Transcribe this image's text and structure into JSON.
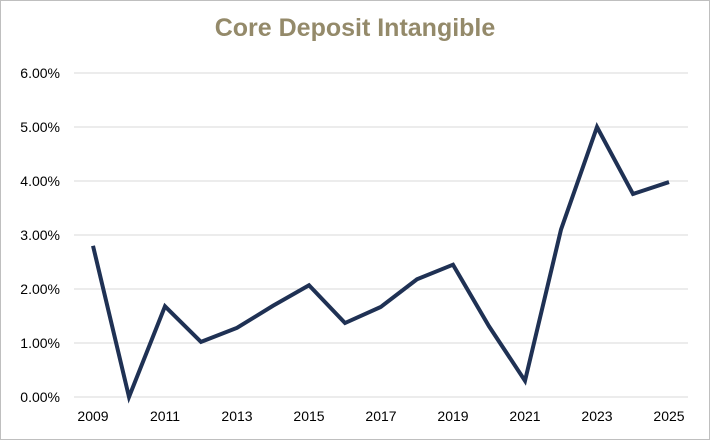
{
  "chart_data": {
    "type": "line",
    "title": "Core Deposit Intangible",
    "xlabel": "",
    "ylabel": "",
    "x": [
      2009,
      2010,
      2011,
      2012,
      2013,
      2014,
      2015,
      2016,
      2017,
      2018,
      2019,
      2020,
      2021,
      2022,
      2023,
      2024,
      2025
    ],
    "series": [
      {
        "name": "",
        "values": [
          2.8,
          0.0,
          1.68,
          1.02,
          1.28,
          1.69,
          2.07,
          1.37,
          1.67,
          2.18,
          2.45,
          1.31,
          0.3,
          3.1,
          5.0,
          3.76,
          3.98
        ]
      }
    ],
    "ylim": [
      0,
      6
    ],
    "y_ticks": [
      0,
      1,
      2,
      3,
      4,
      5,
      6
    ],
    "y_tick_labels": [
      "0.00%",
      "1.00%",
      "2.00%",
      "3.00%",
      "4.00%",
      "5.00%",
      "6.00%"
    ],
    "x_tick_labels": [
      "2009",
      "2011",
      "2013",
      "2015",
      "2017",
      "2019",
      "2021",
      "2023",
      "2025"
    ],
    "x_ticks": [
      2009,
      2011,
      2013,
      2015,
      2017,
      2019,
      2021,
      2023,
      2025
    ],
    "grid": true,
    "legend": "none",
    "colors": {
      "line": "#1f3154",
      "title": "#948a6a",
      "grid": "#d9d9d9"
    }
  }
}
